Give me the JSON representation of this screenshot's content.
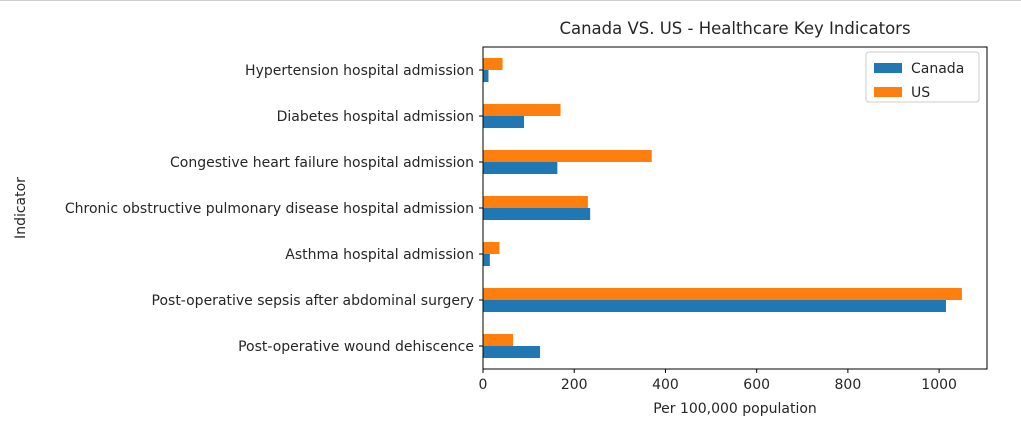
{
  "chart_data": {
    "type": "bar",
    "orientation": "horizontal",
    "title": "Canada VS. US - Healthcare Key Indicators",
    "xlabel": "Per 100,000 population",
    "ylabel": "Indicator",
    "xlim": [
      0,
      1105
    ],
    "xticks": [
      "0",
      "200",
      "400",
      "600",
      "800",
      "1000"
    ],
    "legend_position": "top-right",
    "grid": false,
    "categories": [
      "Post-operative wound dehiscence",
      "Post-operative sepsis after abdominal surgery",
      "Asthma hospital admission",
      "Chronic obstructive pulmonary disease hospital admission",
      "Congestive heart failure hospital admission",
      "Diabetes hospital admission ",
      "Hypertension hospital admission"
    ],
    "series": [
      {
        "name": "Canada",
        "color": "#1f77b4",
        "values": [
          125,
          1015,
          15,
          235,
          163,
          90,
          12
        ]
      },
      {
        "name": "US",
        "color": "#ff7f0e",
        "values": [
          66,
          1050,
          36,
          230,
          370,
          170,
          43
        ]
      }
    ]
  }
}
